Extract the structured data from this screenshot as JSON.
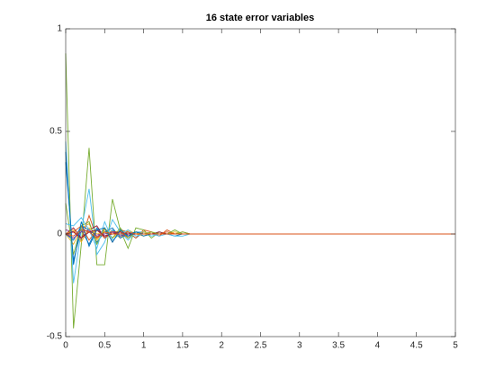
{
  "chart_data": {
    "type": "line",
    "title": "16 state error variables",
    "x": [
      0,
      0.1,
      0.2,
      0.3,
      0.4,
      0.5,
      0.6,
      0.7,
      0.8,
      0.9,
      1,
      1.1,
      1.2,
      1.3,
      1.4,
      1.5,
      1.6,
      1.7,
      1.8,
      1.9,
      2,
      5
    ],
    "series": [
      {
        "color": "#0072BD",
        "values": [
          0.35,
          -0.13,
          0.02,
          -0.05,
          0.03,
          -0.02,
          0.02,
          -0.01,
          0.01,
          -0.02,
          0.01,
          0,
          0.01,
          0,
          -0.01,
          0,
          0,
          0,
          0,
          0,
          0,
          0
        ]
      },
      {
        "color": "#D95319",
        "values": [
          0,
          0.02,
          -0.03,
          0.09,
          -0.02,
          0.03,
          -0.04,
          0.02,
          0.01,
          -0.02,
          0.02,
          0.01,
          -0.01,
          0.02,
          0,
          0.01,
          0,
          0,
          0,
          0,
          0,
          0
        ]
      },
      {
        "color": "#EDB120",
        "values": [
          0,
          -0.05,
          0.03,
          0.05,
          -0.03,
          0.02,
          0.01,
          -0.02,
          0.02,
          0,
          -0.01,
          0.01,
          0,
          0,
          0.01,
          0,
          0,
          0,
          0,
          0,
          0,
          0
        ]
      },
      {
        "color": "#7E2F8E",
        "values": [
          0.02,
          0.01,
          -0.02,
          0.01,
          0,
          -0.01,
          0.01,
          0,
          -0.01,
          0,
          0.01,
          0,
          0,
          0,
          0,
          0,
          0,
          0,
          0,
          0,
          0,
          0
        ]
      },
      {
        "color": "#77AC30",
        "values": [
          0.88,
          -0.46,
          -0.05,
          0.42,
          -0.15,
          -0.15,
          0.17,
          0.02,
          -0.07,
          0.03,
          0.02,
          -0.02,
          0.01,
          0,
          0,
          0.01,
          0,
          0,
          0,
          0,
          0,
          0
        ]
      },
      {
        "color": "#4DBEEE",
        "values": [
          0.45,
          -0.24,
          0.02,
          0.22,
          -0.1,
          -0.04,
          0.07,
          0.01,
          -0.03,
          0.01,
          0.01,
          -0.01,
          0,
          0,
          -0.01,
          -0.01,
          0,
          0,
          0,
          0,
          0,
          0
        ]
      },
      {
        "color": "#A2142F",
        "values": [
          0,
          0.03,
          -0.02,
          0.02,
          0.04,
          -0.02,
          0.01,
          0.01,
          -0.01,
          0.01,
          0,
          0,
          0.01,
          0,
          0,
          0,
          0,
          0,
          0,
          0,
          0,
          0
        ]
      },
      {
        "color": "#0072BD",
        "values": [
          0,
          -0.03,
          0.04,
          0.02,
          -0.04,
          0.01,
          0.03,
          -0.02,
          0,
          0.01,
          -0.01,
          0,
          0,
          0,
          0,
          0,
          0,
          0,
          0,
          0,
          0,
          0
        ]
      },
      {
        "color": "#D95319",
        "values": [
          0,
          0.01,
          0.04,
          -0.03,
          0.02,
          -0.02,
          0.01,
          0.01,
          -0.02,
          0.01,
          0,
          0,
          0,
          0.01,
          0,
          0,
          0,
          0,
          0,
          0,
          0,
          0
        ]
      },
      {
        "color": "#EDB120",
        "values": [
          0,
          0.02,
          -0.04,
          0.03,
          0,
          0.01,
          -0.02,
          0.01,
          0,
          0,
          0.01,
          0,
          0,
          0,
          0,
          0,
          0,
          0,
          0,
          0,
          0,
          0
        ]
      },
      {
        "color": "#7E2F8E",
        "values": [
          0,
          -0.02,
          0.01,
          0.02,
          -0.01,
          0,
          0.01,
          -0.01,
          0,
          0,
          0,
          0,
          0,
          0,
          0,
          0,
          0,
          0,
          0,
          0,
          0,
          0
        ]
      },
      {
        "color": "#77AC30",
        "values": [
          0.15,
          -0.1,
          0.04,
          0.06,
          -0.05,
          0.03,
          -0.02,
          0.03,
          -0.02,
          0.01,
          0,
          0.01,
          0,
          0,
          0.02,
          0,
          0,
          0,
          0,
          0,
          0,
          0
        ]
      },
      {
        "color": "#4DBEEE",
        "values": [
          0.05,
          0.04,
          0.08,
          0.02,
          -0.07,
          0.06,
          -0.03,
          0,
          0.02,
          -0.01,
          0,
          0,
          -0.01,
          0,
          0,
          0,
          0,
          0,
          0,
          0,
          0,
          0
        ]
      },
      {
        "color": "#A2142F",
        "values": [
          0,
          0.01,
          -0.02,
          0.01,
          0.02,
          -0.01,
          0,
          0.01,
          0,
          0,
          0,
          0,
          0,
          0,
          0,
          0,
          0,
          0,
          0,
          0,
          0,
          0
        ]
      },
      {
        "color": "#0072BD",
        "values": [
          0.4,
          -0.15,
          0.06,
          -0.06,
          0.02,
          0.03,
          -0.04,
          0.02,
          -0.01,
          0.01,
          0,
          0,
          0,
          0,
          0,
          0,
          0,
          0,
          0,
          0,
          0,
          0
        ]
      },
      {
        "color": "#D95319",
        "values": [
          0,
          -0.01,
          0.02,
          0.01,
          -0.02,
          0.01,
          0,
          0,
          0.01,
          0,
          0,
          0,
          0,
          0,
          0,
          0,
          0,
          0,
          0,
          0,
          0,
          0
        ]
      }
    ],
    "xlim": [
      0,
      5
    ],
    "xticks": [
      0,
      0.5,
      1,
      1.5,
      2,
      2.5,
      3,
      3.5,
      4,
      4.5,
      5
    ],
    "ylim": [
      -0.5,
      1
    ],
    "yticks": [
      -0.5,
      0,
      0.5,
      1
    ],
    "grid": false
  }
}
